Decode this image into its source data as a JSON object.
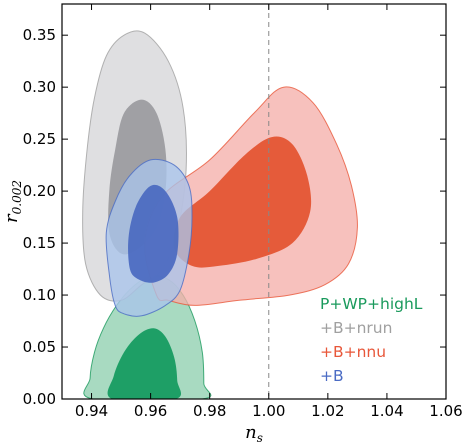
{
  "chart_data": {
    "type": "contour",
    "xlabel": "n",
    "xlabel_sub": "s",
    "ylabel": "r",
    "ylabel_sub": "0.002",
    "xlim": [
      0.93,
      1.06
    ],
    "ylim": [
      0.0,
      0.38
    ],
    "x_ticks": [
      0.94,
      0.96,
      0.98,
      1.0,
      1.02,
      1.04,
      1.06
    ],
    "x_tick_labels": [
      "0.94",
      "0.96",
      "0.98",
      "1.00",
      "1.02",
      "1.04",
      "1.06"
    ],
    "y_ticks": [
      0.0,
      0.05,
      0.1,
      0.15,
      0.2,
      0.25,
      0.3,
      0.35
    ],
    "y_tick_labels": [
      "0.00",
      "0.05",
      "0.10",
      "0.15",
      "0.20",
      "0.25",
      "0.30",
      "0.35"
    ],
    "reference_line": {
      "axis": "x",
      "value": 1.0,
      "style": "dashed"
    },
    "legend_position": "lower-right",
    "series": [
      {
        "name": "P+WP+highL",
        "color": "#1a9a5c",
        "outer_color": "#8fd0b0",
        "inner_color": "#129a5e",
        "contour_95": [
          [
            0.9405,
            0.0
          ],
          [
            0.9395,
            0.02
          ],
          [
            0.941,
            0.045
          ],
          [
            0.944,
            0.068
          ],
          [
            0.9485,
            0.09
          ],
          [
            0.954,
            0.108
          ],
          [
            0.96,
            0.118
          ],
          [
            0.966,
            0.115
          ],
          [
            0.971,
            0.1
          ],
          [
            0.975,
            0.075
          ],
          [
            0.9775,
            0.045
          ],
          [
            0.978,
            0.015
          ],
          [
            0.9775,
            0.0
          ]
        ],
        "contour_68": [
          [
            0.947,
            0.0
          ],
          [
            0.9475,
            0.022
          ],
          [
            0.951,
            0.045
          ],
          [
            0.956,
            0.062
          ],
          [
            0.961,
            0.068
          ],
          [
            0.965,
            0.06
          ],
          [
            0.968,
            0.04
          ],
          [
            0.969,
            0.018
          ],
          [
            0.9685,
            0.0
          ]
        ]
      },
      {
        "name": "+B+nrun",
        "color": "#a0a0a0",
        "outer_color": "#d6d6d9",
        "inner_color": "#9a9a9e",
        "contour_95": [
          [
            0.945,
            0.33
          ],
          [
            0.941,
            0.29
          ],
          [
            0.9385,
            0.24
          ],
          [
            0.937,
            0.18
          ],
          [
            0.938,
            0.13
          ],
          [
            0.943,
            0.1
          ],
          [
            0.95,
            0.095
          ],
          [
            0.957,
            0.11
          ],
          [
            0.964,
            0.125
          ],
          [
            0.969,
            0.16
          ],
          [
            0.972,
            0.22
          ],
          [
            0.971,
            0.28
          ],
          [
            0.966,
            0.325
          ],
          [
            0.958,
            0.352
          ],
          [
            0.951,
            0.35
          ]
        ],
        "contour_68": [
          [
            0.948,
            0.24
          ],
          [
            0.946,
            0.2
          ],
          [
            0.946,
            0.16
          ],
          [
            0.95,
            0.14
          ],
          [
            0.956,
            0.145
          ],
          [
            0.962,
            0.165
          ],
          [
            0.965,
            0.2
          ],
          [
            0.965,
            0.24
          ],
          [
            0.962,
            0.275
          ],
          [
            0.957,
            0.288
          ],
          [
            0.951,
            0.275
          ]
        ]
      },
      {
        "name": "+B+nnu",
        "color": "#e8573a",
        "outer_color": "#f5b0aa",
        "inner_color": "#e3532f",
        "contour_95": [
          [
            0.962,
            0.1
          ],
          [
            0.958,
            0.15
          ],
          [
            0.964,
            0.195
          ],
          [
            0.98,
            0.23
          ],
          [
            0.995,
            0.275
          ],
          [
            1.005,
            0.3
          ],
          [
            1.015,
            0.285
          ],
          [
            1.023,
            0.245
          ],
          [
            1.028,
            0.205
          ],
          [
            1.03,
            0.165
          ],
          [
            1.027,
            0.13
          ],
          [
            1.019,
            0.11
          ],
          [
            1.007,
            0.1
          ],
          [
            0.99,
            0.095
          ],
          [
            0.975,
            0.09
          ],
          [
            0.966,
            0.095
          ]
        ],
        "contour_68": [
          [
            0.968,
            0.145
          ],
          [
            0.97,
            0.175
          ],
          [
            0.98,
            0.2
          ],
          [
            0.992,
            0.235
          ],
          [
            1.001,
            0.252
          ],
          [
            1.008,
            0.245
          ],
          [
            1.013,
            0.215
          ],
          [
            1.014,
            0.18
          ],
          [
            1.008,
            0.15
          ],
          [
            0.996,
            0.135
          ],
          [
            0.983,
            0.128
          ],
          [
            0.974,
            0.128
          ]
        ]
      },
      {
        "name": "+B",
        "color": "#4a6bc4",
        "outer_color": "#a9c4ea",
        "inner_color": "#4a69c0",
        "contour_95": [
          [
            0.948,
            0.09
          ],
          [
            0.946,
            0.12
          ],
          [
            0.945,
            0.16
          ],
          [
            0.948,
            0.19
          ],
          [
            0.953,
            0.215
          ],
          [
            0.96,
            0.23
          ],
          [
            0.968,
            0.225
          ],
          [
            0.973,
            0.205
          ],
          [
            0.974,
            0.175
          ],
          [
            0.973,
            0.14
          ],
          [
            0.97,
            0.105
          ],
          [
            0.965,
            0.09
          ],
          [
            0.957,
            0.08
          ],
          [
            0.951,
            0.082
          ]
        ],
        "contour_68": [
          [
            0.953,
            0.125
          ],
          [
            0.9525,
            0.155
          ],
          [
            0.955,
            0.185
          ],
          [
            0.96,
            0.205
          ],
          [
            0.965,
            0.2
          ],
          [
            0.969,
            0.175
          ],
          [
            0.969,
            0.14
          ],
          [
            0.966,
            0.12
          ],
          [
            0.961,
            0.112
          ],
          [
            0.956,
            0.115
          ]
        ]
      }
    ]
  }
}
